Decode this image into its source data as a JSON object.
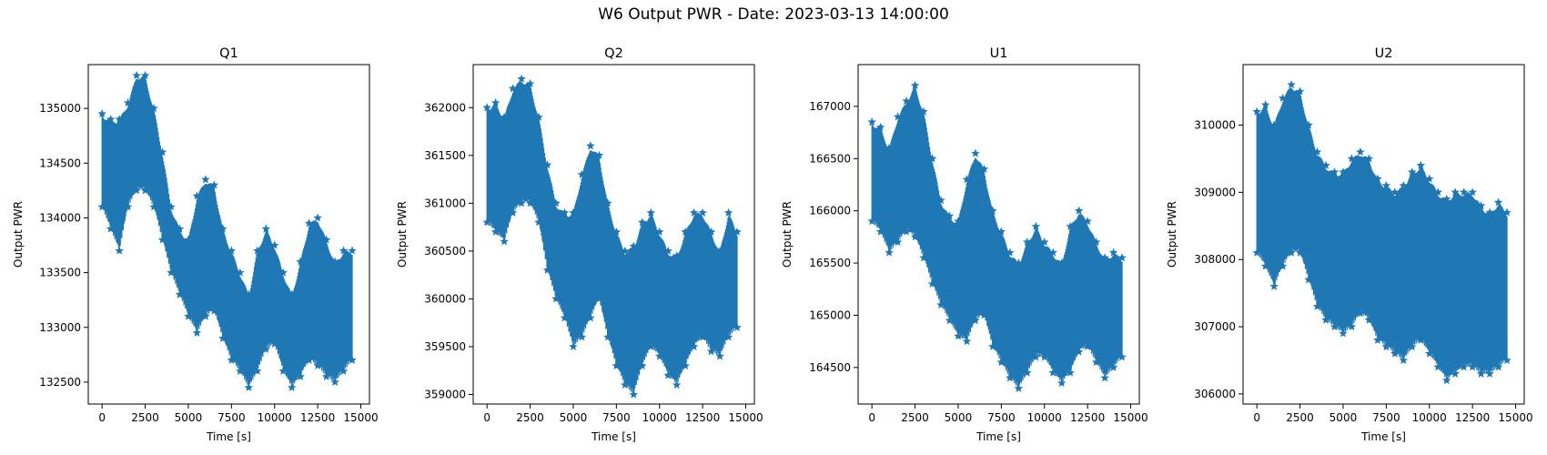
{
  "figure": {
    "title": "W6 Output PWR - Date: 2023-03-13 14:00:00"
  },
  "series_color": "#1f77b4",
  "chart_data": [
    {
      "type": "scatter",
      "title": "Q1",
      "xlabel": "Time [s]",
      "ylabel": "Output PWR",
      "xlim": [
        -800,
        15500
      ],
      "ylim": [
        132300,
        135400
      ],
      "xticks": [
        0,
        2500,
        5000,
        7500,
        10000,
        12500,
        15000
      ],
      "yticks": [
        132500,
        133000,
        133500,
        134000,
        134500,
        135000
      ],
      "marker": "star",
      "x": [
        0,
        500,
        1000,
        1500,
        2000,
        2500,
        3000,
        3500,
        4000,
        4500,
        5000,
        5500,
        6000,
        6500,
        7000,
        7500,
        8000,
        8500,
        9000,
        9500,
        10000,
        10500,
        11000,
        11500,
        12000,
        12500,
        13000,
        13500,
        14000,
        14500
      ],
      "upper": [
        134950,
        134900,
        134900,
        135050,
        135300,
        135300,
        135000,
        134600,
        134100,
        133900,
        133800,
        134200,
        134350,
        134300,
        133900,
        133700,
        133500,
        133300,
        133700,
        133900,
        133750,
        133500,
        133300,
        133600,
        133950,
        134000,
        133800,
        133600,
        133700,
        133700
      ],
      "lower": [
        134100,
        133900,
        133700,
        134100,
        134250,
        134250,
        134100,
        133800,
        133500,
        133300,
        133100,
        132950,
        133100,
        133150,
        132900,
        132700,
        132600,
        132450,
        132600,
        132800,
        132850,
        132600,
        132450,
        132550,
        132700,
        132650,
        132550,
        132500,
        132600,
        132700
      ]
    },
    {
      "type": "scatter",
      "title": "Q2",
      "xlabel": "Time [s]",
      "ylabel": "Output PWR",
      "xlim": [
        -800,
        15500
      ],
      "ylim": [
        358900,
        362450
      ],
      "xticks": [
        0,
        2500,
        5000,
        7500,
        10000,
        12500,
        15000
      ],
      "yticks": [
        359000,
        359500,
        360000,
        360500,
        361000,
        361500,
        362000
      ],
      "marker": "star",
      "x": [
        0,
        500,
        1000,
        1500,
        2000,
        2500,
        3000,
        3500,
        4000,
        4500,
        5000,
        5500,
        6000,
        6500,
        7000,
        7500,
        8000,
        8500,
        9000,
        9500,
        10000,
        10500,
        11000,
        11500,
        12000,
        12500,
        13000,
        13500,
        14000,
        14500
      ],
      "upper": [
        362000,
        362050,
        361900,
        362200,
        362300,
        362250,
        361900,
        361400,
        361000,
        360900,
        360900,
        361300,
        361600,
        361500,
        361000,
        360700,
        360500,
        360550,
        360800,
        360900,
        360700,
        360500,
        360450,
        360700,
        360900,
        360900,
        360700,
        360500,
        360900,
        360700
      ],
      "lower": [
        360800,
        360700,
        360600,
        360900,
        361000,
        361000,
        360800,
        360300,
        360000,
        359800,
        359500,
        359600,
        359800,
        360000,
        359600,
        359300,
        359100,
        359000,
        359300,
        359500,
        359400,
        359200,
        359100,
        359300,
        359500,
        359600,
        359450,
        359400,
        359600,
        359700
      ]
    },
    {
      "type": "scatter",
      "title": "U1",
      "xlabel": "Time [s]",
      "ylabel": "Output PWR",
      "xlim": [
        -800,
        15500
      ],
      "ylim": [
        164150,
        167400
      ],
      "xticks": [
        0,
        2500,
        5000,
        7500,
        10000,
        12500,
        15000
      ],
      "yticks": [
        164500,
        165000,
        165500,
        166000,
        166500,
        167000
      ],
      "marker": "star",
      "x": [
        0,
        500,
        1000,
        1500,
        2000,
        2500,
        3000,
        3500,
        4000,
        4500,
        5000,
        5500,
        6000,
        6500,
        7000,
        7500,
        8000,
        8500,
        9000,
        9500,
        10000,
        10500,
        11000,
        11500,
        12000,
        12500,
        13000,
        13500,
        14000,
        14500
      ],
      "upper": [
        166850,
        166800,
        166600,
        166900,
        167050,
        167200,
        166950,
        166500,
        166100,
        165950,
        165900,
        166300,
        166550,
        166400,
        166000,
        165800,
        165600,
        165500,
        165700,
        165850,
        165700,
        165600,
        165500,
        165850,
        166000,
        165900,
        165700,
        165550,
        165600,
        165550
      ],
      "lower": [
        165900,
        165800,
        165600,
        165700,
        165800,
        165750,
        165550,
        165300,
        165100,
        164950,
        164800,
        164750,
        164950,
        165000,
        164700,
        164550,
        164400,
        164300,
        164450,
        164600,
        164600,
        164450,
        164350,
        164450,
        164650,
        164700,
        164550,
        164400,
        164500,
        164600
      ]
    },
    {
      "type": "scatter",
      "title": "U2",
      "xlabel": "Time [s]",
      "ylabel": "Output PWR",
      "xlim": [
        -800,
        15500
      ],
      "ylim": [
        305850,
        310900
      ],
      "xticks": [
        0,
        2500,
        5000,
        7500,
        10000,
        12500,
        15000
      ],
      "yticks": [
        306000,
        307000,
        308000,
        309000,
        310000
      ],
      "marker": "star",
      "x": [
        0,
        500,
        1000,
        1500,
        2000,
        2500,
        3000,
        3500,
        4000,
        4500,
        5000,
        5500,
        6000,
        6500,
        7000,
        7500,
        8000,
        8500,
        9000,
        9500,
        10000,
        10500,
        11000,
        11500,
        12000,
        12500,
        13000,
        13500,
        14000,
        14500
      ],
      "upper": [
        310200,
        310300,
        310000,
        310400,
        310600,
        310500,
        310000,
        309600,
        309400,
        309300,
        309300,
        309500,
        309600,
        309500,
        309200,
        309100,
        309000,
        309100,
        309300,
        309400,
        309200,
        309000,
        308900,
        309000,
        309000,
        309000,
        308800,
        308700,
        308850,
        308700
      ],
      "lower": [
        308100,
        307900,
        307600,
        307900,
        308100,
        308100,
        307700,
        307300,
        307100,
        307000,
        306900,
        307000,
        307200,
        307100,
        306800,
        306700,
        306600,
        306500,
        306700,
        306800,
        306600,
        306400,
        306200,
        306300,
        306400,
        306400,
        306300,
        306300,
        306400,
        306500
      ]
    }
  ]
}
